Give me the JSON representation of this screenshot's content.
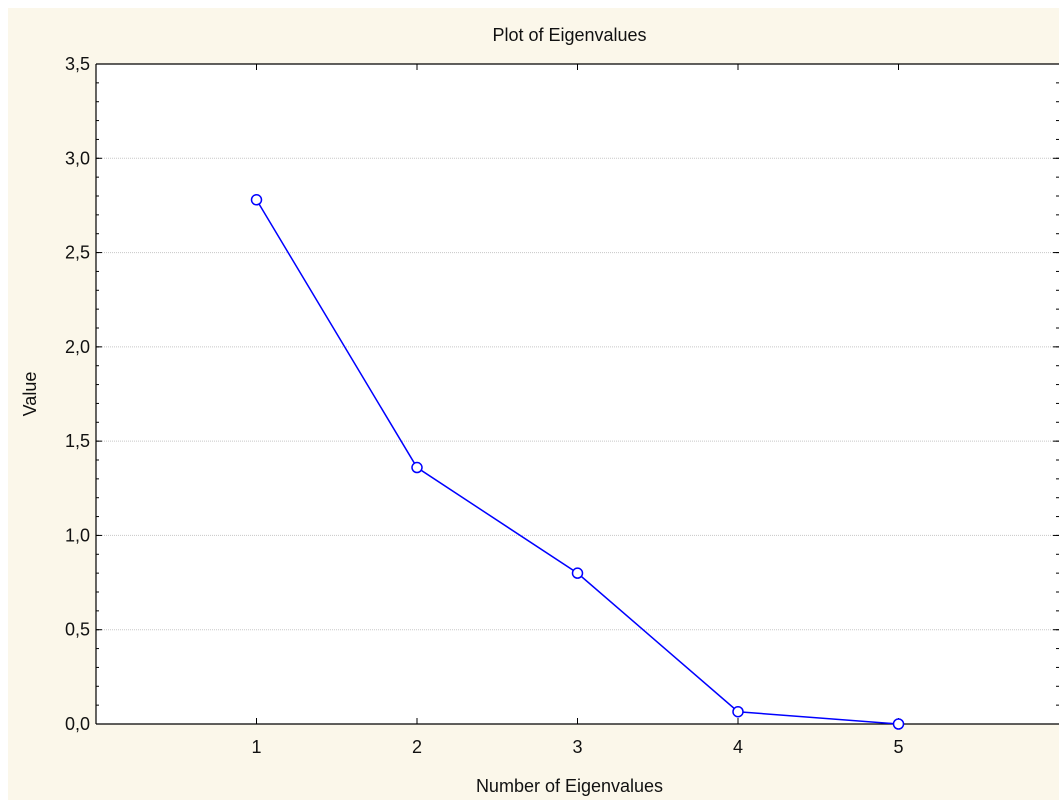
{
  "chart_data": {
    "type": "line",
    "title": "Plot of Eigenvalues",
    "xlabel": "Number of Eigenvalues",
    "ylabel": "Value",
    "x": [
      1,
      2,
      3,
      4,
      5
    ],
    "y_ticks": [
      "0,0",
      "0,5",
      "1,0",
      "1,5",
      "2,0",
      "2,5",
      "3,0",
      "3,5"
    ],
    "x_ticks": [
      "1",
      "2",
      "3",
      "4",
      "5"
    ],
    "xlim": [
      0,
      6
    ],
    "ylim": [
      0,
      3.5
    ],
    "grid": true,
    "series": [
      {
        "values": [
          2.78,
          1.36,
          0.8,
          0.065,
          0.0
        ],
        "color": "#0000ff"
      }
    ],
    "colors": {
      "background": "#fbf7ea",
      "plot_area": "#ffffff",
      "grid": "#c8c8c8",
      "axis": "#000000"
    }
  }
}
